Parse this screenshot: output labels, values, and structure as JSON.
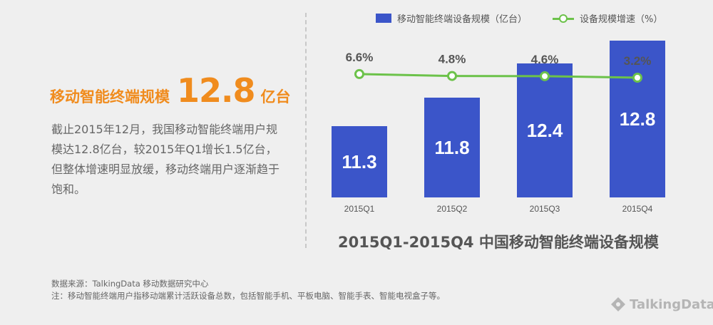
{
  "headline": {
    "label": "移动智能终端规模",
    "value": "12.8",
    "unit": "亿台"
  },
  "description": "截止2015年12月，我国移动智能终端用户规模达12.8亿台，较2015年Q1增长1.5亿台，但整体增速明显放缓，移动终端用户逐渐趋于饱和。",
  "legend": {
    "bar": "移动智能终端设备规模（亿台）",
    "line": "设备规模增速（%）"
  },
  "notes": {
    "source": "数据来源：TalkingData 移动数据研究中心",
    "note": "注：移动智能终端用户指移动端累计活跃设备总数，包括智能手机、平板电脑、智能手表、智能电视盒子等。"
  },
  "brand": "TalkingData",
  "colors": {
    "bar": "#3b55c9",
    "line": "#6cc24a",
    "accent": "#f08c1e"
  },
  "chart_data": {
    "type": "bar",
    "title": "2015Q1-2015Q4 中国移动智能终端设备规模",
    "categories": [
      "2015Q1",
      "2015Q2",
      "2015Q3",
      "2015Q4"
    ],
    "series": [
      {
        "name": "移动智能终端设备规模（亿台）",
        "type": "bar",
        "values": [
          11.3,
          11.8,
          12.4,
          12.8
        ],
        "labels": [
          "11.3",
          "11.8",
          "12.4",
          "12.8"
        ]
      },
      {
        "name": "设备规模增速（%）",
        "type": "line",
        "values": [
          6.6,
          4.8,
          4.6,
          3.2
        ],
        "labels": [
          "6.6%",
          "4.8%",
          "4.6%",
          "3.2%"
        ]
      }
    ],
    "legend": "top",
    "grid": false
  }
}
